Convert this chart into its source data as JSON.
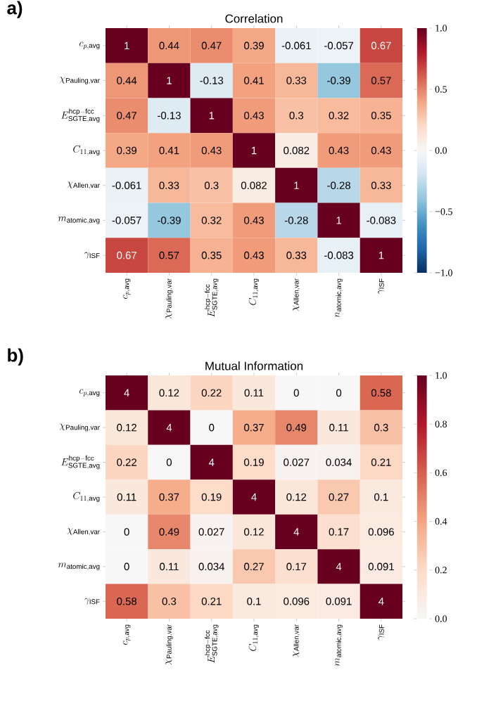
{
  "chart_data": [
    {
      "type": "heatmap",
      "title": "Correlation",
      "annotations": [
        "a)"
      ],
      "categories": [
        "c_{p,\\mathrm{avg}}",
        "\\chi_{\\mathrm{Pauling,var}}",
        "E^{\\mathrm{hcp-fcc}}_{\\mathrm{SGTE,avg}}",
        "C_{11,\\mathrm{avg}}",
        "\\chi_{\\mathrm{Allen,var}}",
        "n_{\\mathrm{atomic,avg}}",
        "\\gamma_{\\mathrm{ISF}}"
      ],
      "y_categories": [
        "c_{p,\\mathrm{avg}}",
        "\\chi_{\\mathrm{Pauling,var}}",
        "E^{\\mathrm{hcp-fcc}}_{\\mathrm{SGTE,avg}}",
        "C_{11,\\mathrm{avg}}",
        "\\chi_{\\mathrm{Allen,var}}",
        "m_{\\mathrm{atomic,avg}}",
        "\\gamma_{\\mathrm{ISF}}"
      ],
      "cells": [
        [
          1,
          0.44,
          0.47,
          0.39,
          -0.061,
          -0.057,
          0.67
        ],
        [
          0.44,
          1,
          -0.13,
          0.41,
          0.33,
          -0.39,
          0.57
        ],
        [
          0.47,
          -0.13,
          1,
          0.43,
          0.3,
          0.32,
          0.35
        ],
        [
          0.39,
          0.41,
          0.43,
          1,
          0.082,
          0.43,
          0.43
        ],
        [
          -0.061,
          0.33,
          0.3,
          0.082,
          1,
          -0.28,
          0.33
        ],
        [
          -0.057,
          -0.39,
          0.32,
          0.43,
          -0.28,
          1,
          -0.083
        ],
        [
          0.67,
          0.57,
          0.35,
          0.43,
          0.33,
          -0.083,
          1
        ]
      ],
      "clim": [
        -1,
        1
      ],
      "cticks": [
        {
          "value": -1,
          "label": "−1.0"
        },
        {
          "value": -0.5,
          "label": "−0.5"
        },
        {
          "value": 0,
          "label": "0.0"
        },
        {
          "value": 0.5,
          "label": "0.5"
        },
        {
          "value": 1,
          "label": "1.0"
        }
      ],
      "data_labels": true
    },
    {
      "type": "heatmap",
      "title": "Mutual Information",
      "annotations": [
        "b)"
      ],
      "categories": [
        "c_{p,\\mathrm{avg}}",
        "\\chi_{\\mathrm{Pauling,var}}",
        "E^{\\mathrm{hcp-fcc}}_{\\mathrm{SGTE,avg}}",
        "C_{11,\\mathrm{avg}}",
        "\\chi_{\\mathrm{Allen,var}}",
        "m_{\\mathrm{atomic,avg}}",
        "\\gamma_{\\mathrm{ISF}}"
      ],
      "y_categories": [
        "c_{p,\\mathrm{avg}}",
        "\\chi_{\\mathrm{Pauling,var}}",
        "E^{\\mathrm{hcp-fcc}}_{\\mathrm{SGTE,avg}}",
        "C_{11,\\mathrm{avg}}",
        "\\chi_{\\mathrm{Allen,var}}",
        "m_{\\mathrm{atomic,avg}}",
        "\\gamma_{\\mathrm{ISF}}"
      ],
      "cells": [
        [
          4,
          0.12,
          0.22,
          0.11,
          0,
          0,
          0.58
        ],
        [
          0.12,
          4,
          0,
          0.37,
          0.49,
          0.11,
          0.3
        ],
        [
          0.22,
          0,
          4,
          0.19,
          0.027,
          0.034,
          0.21
        ],
        [
          0.11,
          0.37,
          0.19,
          4,
          0.12,
          0.27,
          0.1
        ],
        [
          0,
          0.49,
          0.027,
          0.12,
          4,
          0.17,
          0.096
        ],
        [
          0,
          0.11,
          0.034,
          0.27,
          0.17,
          4,
          0.091
        ],
        [
          0.58,
          0.3,
          0.21,
          0.1,
          0.096,
          0.091,
          4
        ]
      ],
      "clim": [
        0,
        1
      ],
      "cticks": [
        {
          "value": 0,
          "label": "0.0"
        },
        {
          "value": 0.2,
          "label": "0.2"
        },
        {
          "value": 0.4,
          "label": "0.4"
        },
        {
          "value": 0.6,
          "label": "0.6"
        },
        {
          "value": 0.8,
          "label": "0.8"
        },
        {
          "value": 1,
          "label": "1.0"
        }
      ],
      "data_labels": true
    }
  ]
}
